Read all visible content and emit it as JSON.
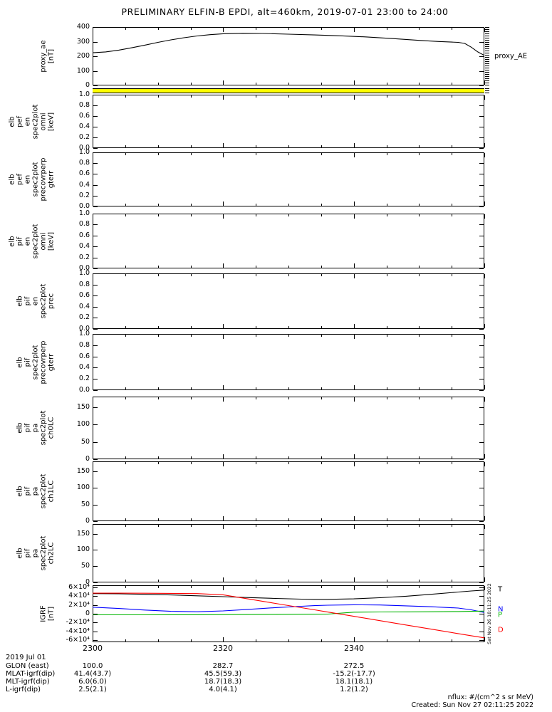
{
  "title": "PRELIMINARY ELFIN-B EPDI, alt=460km, 2019-07-01 23:00 to 24:00",
  "colors": {
    "axis": "#000000",
    "flag": "#ffff00",
    "igrf_t": "#000000",
    "igrf_n": "#0000ff",
    "igrf_p": "#00b400",
    "igrf_d": "#ff0000"
  },
  "xaxis": {
    "tick_labels": [
      "2300",
      "2320",
      "2340"
    ],
    "tick_minutes": [
      0,
      20,
      40
    ],
    "range_min": [
      0,
      60
    ],
    "minor_every_min": 5
  },
  "chart_data": [
    {
      "id": "proxy_ae",
      "type": "line",
      "label_lines": [
        "proxy_ae",
        "[nT]"
      ],
      "right_label": "proxy_AE",
      "ylim": [
        0,
        400
      ],
      "yticks": [
        0,
        100,
        200,
        300,
        400
      ],
      "ytick_labels": [
        "0",
        "100",
        "200",
        "300",
        "400"
      ],
      "series": [
        {
          "name": "proxy_AE",
          "color": "#000000",
          "x": [
            0,
            2,
            4,
            6,
            8,
            10,
            12,
            14,
            16,
            18,
            20,
            23,
            26,
            30,
            34,
            38,
            42,
            46,
            50,
            53,
            55,
            56,
            57,
            58,
            59,
            60
          ],
          "y": [
            224,
            230,
            242,
            258,
            276,
            295,
            312,
            327,
            339,
            348,
            354,
            357,
            356,
            351,
            346,
            340,
            332,
            321,
            309,
            301,
            297,
            295,
            288,
            262,
            230,
            206
          ]
        }
      ]
    },
    {
      "id": "flag_bar",
      "type": "flag",
      "color": "#ffff00"
    },
    {
      "id": "elb_pef_en_omni",
      "type": "spectrogram-empty",
      "label_lines": [
        "elb",
        "pef",
        "en",
        "spec2plot",
        "omni",
        "[keV]"
      ],
      "ylim": [
        0,
        1
      ],
      "yticks": [
        0,
        0.2,
        0.4,
        0.6,
        0.8,
        1.0
      ],
      "ytick_labels": [
        "0.0",
        "0.2",
        "0.4",
        "0.6",
        "0.8",
        "1.0"
      ],
      "series": []
    },
    {
      "id": "elb_pef_precovrperp_gterr",
      "type": "spectrogram-empty",
      "label_lines": [
        "elb",
        "pef",
        "en",
        "spec2plot",
        "precovrperp",
        "gterr"
      ],
      "ylim": [
        0,
        1
      ],
      "yticks": [
        0,
        0.2,
        0.4,
        0.6,
        0.8,
        1.0
      ],
      "ytick_labels": [
        "0.0",
        "0.2",
        "0.4",
        "0.6",
        "0.8",
        "1.0"
      ],
      "series": []
    },
    {
      "id": "elb_pif_en_omni",
      "type": "spectrogram-empty",
      "label_lines": [
        "elb",
        "pif",
        "en",
        "spec2plot",
        "omni",
        "[keV]"
      ],
      "ylim": [
        0,
        1
      ],
      "yticks": [
        0,
        0.2,
        0.4,
        0.6,
        0.8,
        1.0
      ],
      "ytick_labels": [
        "0.0",
        "0.2",
        "0.4",
        "0.6",
        "0.8",
        "1.0"
      ],
      "series": []
    },
    {
      "id": "elb_pif_prec",
      "type": "spectrogram-empty",
      "label_lines": [
        "elb",
        "pif",
        "en",
        "spec2plot",
        "prec"
      ],
      "ylim": [
        0,
        1
      ],
      "yticks": [
        0,
        0.2,
        0.4,
        0.6,
        0.8,
        1.0
      ],
      "ytick_labels": [
        "0.0",
        "0.2",
        "0.4",
        "0.6",
        "0.8",
        "1.0"
      ],
      "series": []
    },
    {
      "id": "elb_pif_precovrperp_gterr",
      "type": "spectrogram-empty",
      "label_lines": [
        "elb",
        "pif",
        "spec2plot",
        "precovrperp",
        "gterr"
      ],
      "ylim": [
        0,
        1
      ],
      "yticks": [
        0,
        0.2,
        0.4,
        0.6,
        0.8,
        1.0
      ],
      "ytick_labels": [
        "0.0",
        "0.2",
        "0.4",
        "0.6",
        "0.8",
        "1.0"
      ],
      "series": []
    },
    {
      "id": "elb_pif_pa_ch0LC",
      "type": "spectrogram-empty",
      "label_lines": [
        "elb",
        "pif",
        "pa",
        "spec2plot",
        "ch0LC"
      ],
      "ylim": [
        0,
        180
      ],
      "yticks": [
        0,
        50,
        100,
        150
      ],
      "ytick_labels": [
        "0",
        "50",
        "100",
        "150"
      ],
      "series": []
    },
    {
      "id": "elb_pif_pa_ch1LC",
      "type": "spectrogram-empty",
      "label_lines": [
        "elb",
        "pif",
        "pa",
        "spec2plot",
        "ch1LC"
      ],
      "ylim": [
        0,
        180
      ],
      "yticks": [
        0,
        50,
        100,
        150
      ],
      "ytick_labels": [
        "0",
        "50",
        "100",
        "150"
      ],
      "series": []
    },
    {
      "id": "elb_pif_pa_ch2LC",
      "type": "spectrogram-empty",
      "label_lines": [
        "elb",
        "pif",
        "pa",
        "spec2plot",
        "ch2LC"
      ],
      "ylim": [
        0,
        180
      ],
      "yticks": [
        0,
        50,
        100,
        150
      ],
      "ytick_labels": [
        "0",
        "50",
        "100",
        "150"
      ],
      "series": []
    },
    {
      "id": "igrf",
      "type": "line",
      "label_lines": [
        "IGRF",
        "[nT]"
      ],
      "ylim": [
        -65000,
        65000
      ],
      "yticks": [
        -60000,
        -40000,
        -20000,
        0,
        20000,
        40000,
        60000
      ],
      "ytick_labels": [
        "-6×10⁴",
        "-4×10⁴",
        "-2×10⁴",
        "0",
        "2×10⁴",
        "4×10⁴",
        "6×10⁴"
      ],
      "right_labels": [
        {
          "text": "T",
          "color": "#000000",
          "at": 55000
        },
        {
          "text": "N",
          "color": "#0000ff",
          "at": 10000
        },
        {
          "text": "P",
          "color": "#00b400",
          "at": -4000
        },
        {
          "text": "D",
          "color": "#ff0000",
          "at": -38000
        }
      ],
      "series": [
        {
          "name": "T",
          "color": "#000000",
          "x": [
            0,
            4,
            8,
            12,
            16,
            20,
            24,
            28,
            32,
            34,
            36,
            40,
            44,
            48,
            52,
            56,
            58,
            60
          ],
          "y": [
            46000,
            45500,
            44400,
            42900,
            41000,
            39000,
            36900,
            34900,
            33300,
            32900,
            32900,
            34000,
            36500,
            40000,
            44500,
            49500,
            52000,
            54000
          ]
        },
        {
          "name": "N",
          "color": "#0000ff",
          "x": [
            0,
            4,
            8,
            12,
            16,
            20,
            24,
            28,
            32,
            34,
            36,
            40,
            44,
            48,
            52,
            56,
            58,
            60
          ],
          "y": [
            15000,
            12000,
            8500,
            5500,
            4500,
            6500,
            10000,
            14000,
            17000,
            18500,
            19500,
            20500,
            20000,
            18000,
            16000,
            13000,
            9000,
            3000
          ]
        },
        {
          "name": "P",
          "color": "#00b400",
          "x": [
            0,
            4,
            8,
            12,
            16,
            20,
            24,
            28,
            32,
            34,
            36,
            40,
            44,
            48,
            52,
            56,
            58,
            60
          ],
          "y": [
            -2500,
            -2500,
            -2400,
            -2300,
            -2200,
            -2000,
            -1800,
            -1500,
            -1200,
            -1000,
            -800,
            3500,
            4000,
            4200,
            4500,
            5000,
            5500,
            6000
          ]
        },
        {
          "name": "D",
          "color": "#ff0000",
          "x": [
            0,
            4,
            8,
            12,
            16,
            20,
            24,
            28,
            32,
            34,
            36,
            40,
            44,
            48,
            52,
            56,
            58,
            60
          ],
          "y": [
            47000,
            47000,
            46800,
            46500,
            46000,
            43300,
            33500,
            23600,
            13800,
            8900,
            3900,
            -5900,
            -15700,
            -25600,
            -35400,
            -45300,
            -50200,
            -55000
          ]
        }
      ]
    }
  ],
  "bottom_annotations": {
    "date_label": "2019 Jul 01",
    "rows": [
      {
        "label": "GLON (east)",
        "values": [
          "100.0",
          "282.7",
          "272.5"
        ]
      },
      {
        "label": "MLAT-igrf(dip)",
        "values": [
          "41.4(43.7)",
          "45.5(59.3)",
          "-15.2(-17.7)"
        ]
      },
      {
        "label": "MLT-igrf(dip)",
        "values": [
          "6.0(6.0)",
          "18.7(18.3)",
          "18.1(18.1)"
        ]
      },
      {
        "label": "L-igrf(dip)",
        "values": [
          "2.5(2.1)",
          "4.0(4.1)",
          "1.2(1.2)"
        ]
      }
    ]
  },
  "footer": {
    "units_note": "nflux: #/(cm^2 s sr MeV)",
    "created_note": "Created: Sun Nov 27 02:11:25 2022"
  },
  "side_note": "Sat Nov 26 18:11:25 2022"
}
